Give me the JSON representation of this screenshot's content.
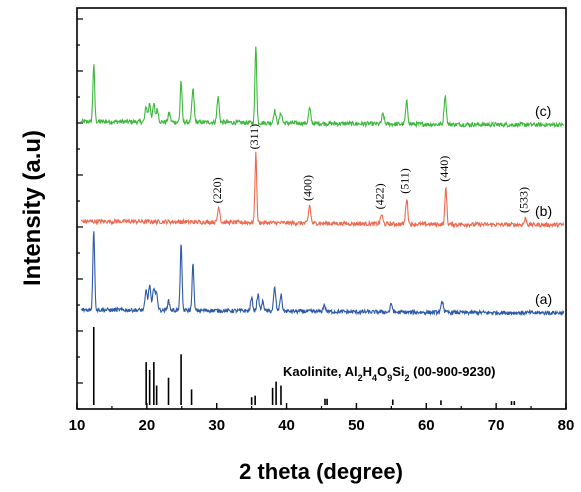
{
  "chart_data": {
    "type": "line",
    "title": "",
    "xlabel": "2 theta (degree)",
    "ylabel": "Intensity (a.u)",
    "xlim": [
      10,
      80
    ],
    "x_ticks": [
      10,
      20,
      30,
      40,
      50,
      60,
      70,
      80
    ],
    "y_tick_labels": false,
    "grid": false,
    "series": [
      {
        "label": "(c)",
        "color": "#3db83d",
        "baseline": 0.045,
        "peaks": [
          [
            12.4,
            0.45
          ],
          [
            19.9,
            0.12
          ],
          [
            20.4,
            0.15
          ],
          [
            21.0,
            0.14
          ],
          [
            21.5,
            0.1
          ],
          [
            23.2,
            0.07
          ],
          [
            24.9,
            0.33
          ],
          [
            26.6,
            0.26
          ],
          [
            30.2,
            0.2
          ],
          [
            35.6,
            0.62
          ],
          [
            38.3,
            0.1
          ],
          [
            39.2,
            0.08
          ],
          [
            43.3,
            0.12
          ],
          [
            53.8,
            0.08
          ],
          [
            57.2,
            0.18
          ],
          [
            62.7,
            0.23
          ]
        ]
      },
      {
        "label": "(b)",
        "color": "#ee6a50",
        "baseline": 0.05,
        "peaks": [
          [
            30.3,
            0.13
          ],
          [
            35.6,
            0.58
          ],
          [
            43.3,
            0.15
          ],
          [
            53.6,
            0.08
          ],
          [
            57.2,
            0.21
          ],
          [
            62.8,
            0.31
          ],
          [
            74.2,
            0.05
          ]
        ],
        "peak_labels": [
          {
            "x": 30.3,
            "text": "(220)"
          },
          {
            "x": 35.6,
            "text": "(311)"
          },
          {
            "x": 43.3,
            "text": "(400)"
          },
          {
            "x": 53.6,
            "text": "(422)"
          },
          {
            "x": 57.2,
            "text": "(511)"
          },
          {
            "x": 62.8,
            "text": "(440)"
          },
          {
            "x": 74.2,
            "text": "(533)"
          }
        ]
      },
      {
        "label": "(a)",
        "color": "#2e5aa8",
        "baseline": 0.045,
        "peaks": [
          [
            12.4,
            0.7
          ],
          [
            19.9,
            0.17
          ],
          [
            20.4,
            0.22
          ],
          [
            21.0,
            0.2
          ],
          [
            21.4,
            0.14
          ],
          [
            23.1,
            0.08
          ],
          [
            24.9,
            0.58
          ],
          [
            26.6,
            0.4
          ],
          [
            35.0,
            0.11
          ],
          [
            35.9,
            0.14
          ],
          [
            36.6,
            0.08
          ],
          [
            38.3,
            0.2
          ],
          [
            39.2,
            0.14
          ],
          [
            45.4,
            0.06
          ],
          [
            55.0,
            0.07
          ],
          [
            62.3,
            0.1
          ]
        ]
      }
    ],
    "reference": {
      "label_parts": [
        "Kaolinite, Al",
        "2",
        "H",
        "4",
        "O",
        "9",
        "Si",
        "2",
        " (00-900-9230)"
      ],
      "color": "#000000",
      "lines": [
        [
          12.4,
          1.0
        ],
        [
          19.9,
          0.55
        ],
        [
          20.4,
          0.45
        ],
        [
          21.0,
          0.55
        ],
        [
          21.4,
          0.25
        ],
        [
          23.1,
          0.35
        ],
        [
          24.9,
          0.65
        ],
        [
          26.4,
          0.2
        ],
        [
          35.0,
          0.1
        ],
        [
          35.5,
          0.12
        ],
        [
          38.0,
          0.22
        ],
        [
          38.5,
          0.3
        ],
        [
          39.2,
          0.25
        ],
        [
          45.5,
          0.08
        ],
        [
          45.8,
          0.08
        ],
        [
          55.2,
          0.07
        ],
        [
          62.1,
          0.06
        ],
        [
          72.2,
          0.05
        ],
        [
          72.6,
          0.05
        ]
      ]
    }
  }
}
